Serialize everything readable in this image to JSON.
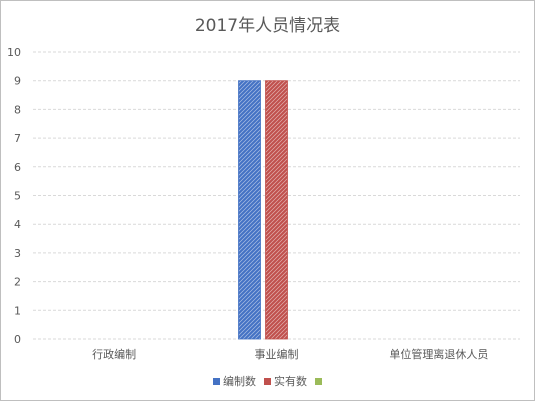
{
  "chart_data": {
    "type": "bar",
    "title": "2017年人员情况表",
    "categories": [
      "行政编制",
      "事业编制",
      "单位管理离退休人员"
    ],
    "series": [
      {
        "name": "编制数",
        "values": [
          0,
          9,
          0
        ],
        "color": "#4472c4"
      },
      {
        "name": "实有数",
        "values": [
          0,
          9,
          0
        ],
        "color": "#c0504d"
      },
      {
        "name": "",
        "values": [
          0,
          0,
          0
        ],
        "color": "#9bbb59"
      }
    ],
    "ylim": [
      0,
      10
    ],
    "yticks": [
      "0",
      "1",
      "2",
      "3",
      "4",
      "5",
      "6",
      "7",
      "8",
      "9",
      "10"
    ],
    "grid": true,
    "bar_pattern": "diagonal-hatch",
    "legend_position": "bottom"
  }
}
